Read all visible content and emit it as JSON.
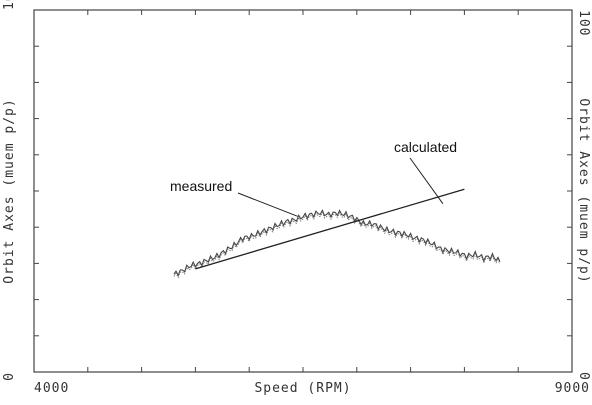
{
  "chart_data": {
    "type": "line",
    "xlabel": "Speed (RPM)",
    "ylabel": "Orbit Axes (muem p/p)",
    "xlim": [
      4000,
      9000
    ],
    "ylim": [
      0,
      100
    ],
    "x_tick_labels": [
      {
        "value": 4000,
        "label": "4000"
      },
      {
        "value": 9000,
        "label": "9000"
      }
    ],
    "y_tick_labels": [
      {
        "value": 0,
        "label": "0"
      },
      {
        "value": 100,
        "label": "100"
      }
    ],
    "minor_x_ticks": [
      4000,
      4500,
      5000,
      5500,
      6000,
      6500,
      7000,
      7500,
      8000,
      8500,
      9000
    ],
    "minor_y_ticks": [
      0,
      10,
      20,
      30,
      40,
      50,
      60,
      70,
      80,
      90,
      100
    ],
    "grid": false,
    "series": [
      {
        "name": "measured",
        "values": [
          [
            5300,
            27
          ],
          [
            5380,
            28
          ],
          [
            5460,
            29.5
          ],
          [
            5540,
            30
          ],
          [
            5620,
            31
          ],
          [
            5700,
            32
          ],
          [
            5780,
            33.5
          ],
          [
            5860,
            35
          ],
          [
            5940,
            37
          ],
          [
            6020,
            37.5
          ],
          [
            6100,
            38.5
          ],
          [
            6180,
            39.5
          ],
          [
            6260,
            40.5
          ],
          [
            6340,
            41.5
          ],
          [
            6420,
            42
          ],
          [
            6500,
            43
          ],
          [
            6580,
            43.5
          ],
          [
            6660,
            44
          ],
          [
            6740,
            43.5
          ],
          [
            6820,
            44
          ],
          [
            6900,
            43.5
          ],
          [
            6980,
            42.5
          ],
          [
            7060,
            41
          ],
          [
            7140,
            41
          ],
          [
            7220,
            40
          ],
          [
            7300,
            39
          ],
          [
            7380,
            38.5
          ],
          [
            7460,
            38
          ],
          [
            7540,
            37
          ],
          [
            7620,
            36.5
          ],
          [
            7700,
            35.5
          ],
          [
            7780,
            34
          ],
          [
            7860,
            33.5
          ],
          [
            7940,
            33
          ],
          [
            8020,
            32
          ],
          [
            8100,
            32.5
          ],
          [
            8180,
            31.5
          ],
          [
            8260,
            32
          ],
          [
            8330,
            30.5
          ]
        ]
      },
      {
        "name": "calculated",
        "values": [
          [
            5500,
            28.5
          ],
          [
            8000,
            50.5
          ]
        ]
      }
    ],
    "annotations": [
      {
        "text": "measured",
        "target_series": "measured",
        "point": [
          6450,
          43
        ]
      },
      {
        "text": "calculated",
        "target_series": "calculated",
        "point": [
          7800,
          46.5
        ]
      }
    ]
  }
}
